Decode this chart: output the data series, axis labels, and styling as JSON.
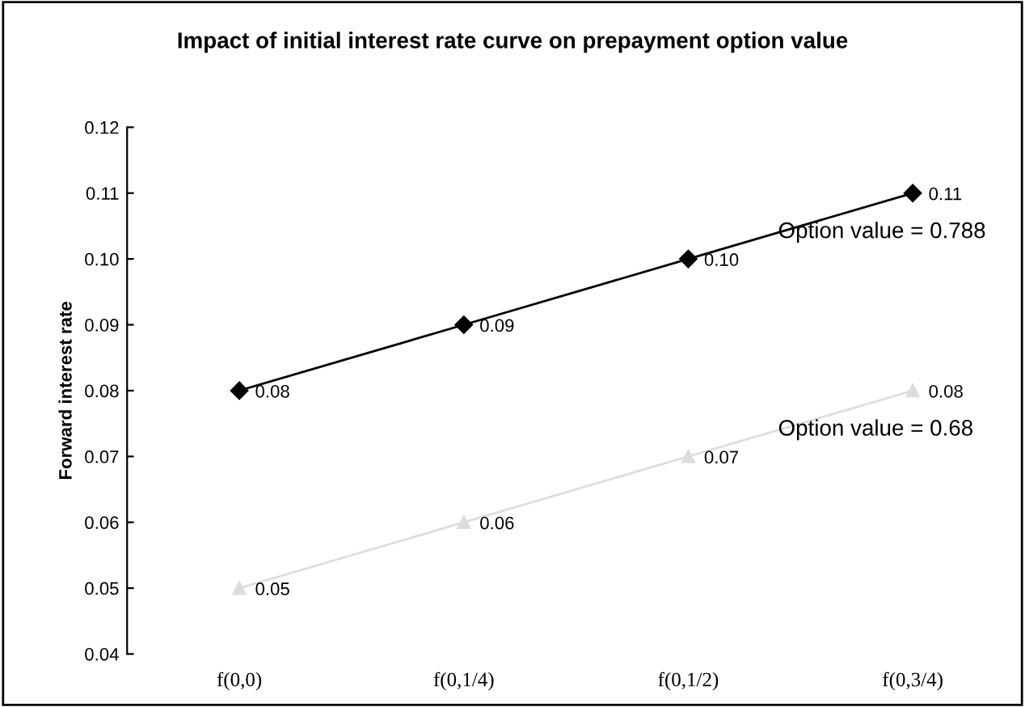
{
  "chart_data": {
    "type": "line",
    "title": "Impact of initial interest rate curve on prepayment option value",
    "ylabel": "Forward interest rate",
    "categories": [
      "f(0,0)",
      "f(0,1/4)",
      "f(0,1/2)",
      "f(0,3/4)"
    ],
    "series": [
      {
        "color": "#000000",
        "marker": "diamond",
        "values": [
          0.08,
          0.09,
          0.1,
          0.11
        ],
        "value_labels": [
          "0.08",
          "0.09",
          "0.10",
          "0.11"
        ]
      },
      {
        "color": "#dddddd",
        "marker": "triangle",
        "values": [
          0.05,
          0.06,
          0.07,
          0.08
        ],
        "value_labels": [
          "0.05",
          "0.06",
          "0.07",
          "0.08"
        ]
      }
    ],
    "annotations": [
      "Option value = 0.788",
      "Option value = 0.68"
    ],
    "ylim": [
      0.04,
      0.12
    ],
    "yticks": [
      0.04,
      0.05,
      0.06,
      0.07,
      0.08,
      0.09,
      {
        "value": 0.1,
        "label": "0.10"
      },
      0.11,
      0.12
    ],
    "grid": false,
    "legend": false,
    "line_style": "solid"
  }
}
